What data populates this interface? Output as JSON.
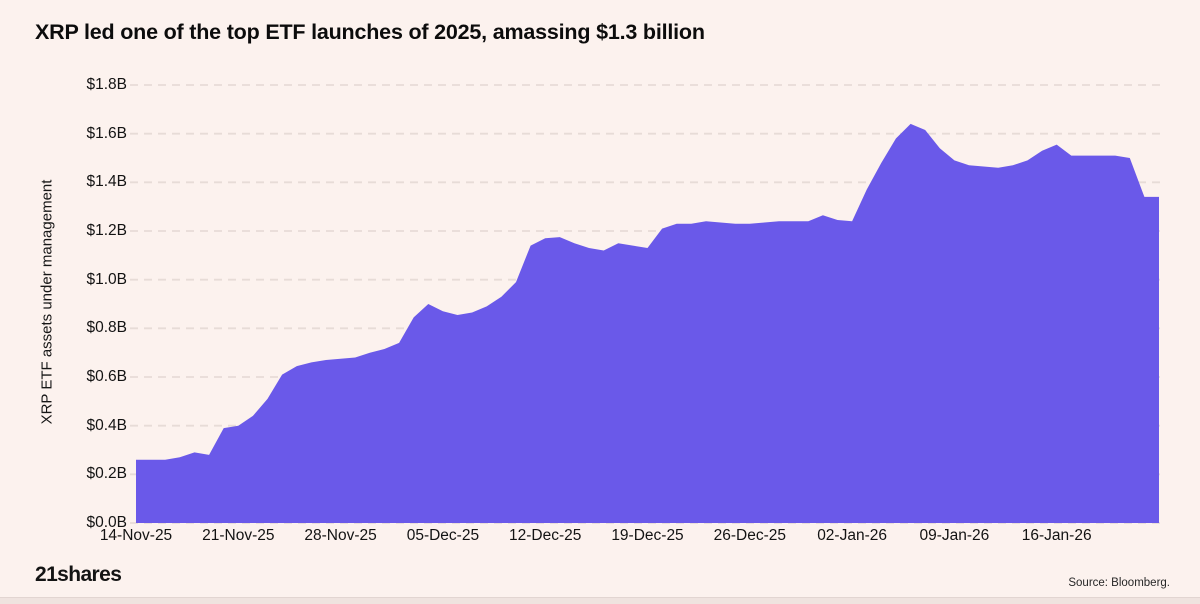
{
  "header": {
    "title": "XRP led one of the top ETF launches of 2025, amassing $1.3 billion"
  },
  "chart_data": {
    "type": "area",
    "title": "XRP led one of the top ETF launches of 2025, amassing $1.3 billion",
    "xlabel": "",
    "ylabel": "XRP ETF assets under management",
    "ylim": [
      0,
      1.8
    ],
    "grid": "horizontal-dashed",
    "legend_position": "none",
    "y_tick_labels": [
      "$0.0B",
      "$0.2B",
      "$0.4B",
      "$0.6B",
      "$0.8B",
      "$1.0B",
      "$1.2B",
      "$1.4B",
      "$1.6B",
      "$1.8B"
    ],
    "x_tick_labels": [
      "14-Nov-25",
      "21-Nov-25",
      "28-Nov-25",
      "05-Dec-25",
      "12-Dec-25",
      "19-Dec-25",
      "26-Dec-25",
      "02-Jan-26",
      "09-Jan-26",
      "16-Jan-26"
    ],
    "x_tick_day_index": [
      0,
      7,
      14,
      21,
      28,
      35,
      42,
      49,
      56,
      63
    ],
    "series": [
      {
        "name": "XRP ETF assets under management ($B)",
        "x": [
          "14-Nov-25",
          "15-Nov-25",
          "16-Nov-25",
          "17-Nov-25",
          "18-Nov-25",
          "19-Nov-25",
          "20-Nov-25",
          "21-Nov-25",
          "22-Nov-25",
          "23-Nov-25",
          "24-Nov-25",
          "25-Nov-25",
          "26-Nov-25",
          "27-Nov-25",
          "28-Nov-25",
          "29-Nov-25",
          "30-Nov-25",
          "01-Dec-25",
          "02-Dec-25",
          "03-Dec-25",
          "04-Dec-25",
          "05-Dec-25",
          "06-Dec-25",
          "07-Dec-25",
          "08-Dec-25",
          "09-Dec-25",
          "10-Dec-25",
          "11-Dec-25",
          "12-Dec-25",
          "13-Dec-25",
          "14-Dec-25",
          "15-Dec-25",
          "16-Dec-25",
          "17-Dec-25",
          "18-Dec-25",
          "19-Dec-25",
          "20-Dec-25",
          "21-Dec-25",
          "22-Dec-25",
          "23-Dec-25",
          "24-Dec-25",
          "25-Dec-25",
          "26-Dec-25",
          "27-Dec-25",
          "28-Dec-25",
          "29-Dec-25",
          "30-Dec-25",
          "31-Dec-25",
          "01-Jan-26",
          "02-Jan-26",
          "03-Jan-26",
          "04-Jan-26",
          "05-Jan-26",
          "06-Jan-26",
          "07-Jan-26",
          "08-Jan-26",
          "09-Jan-26",
          "10-Jan-26",
          "11-Jan-26",
          "12-Jan-26",
          "13-Jan-26",
          "14-Jan-26",
          "15-Jan-26",
          "16-Jan-26",
          "17-Jan-26",
          "18-Jan-26",
          "19-Jan-26",
          "20-Jan-26",
          "21-Jan-26",
          "22-Jan-26",
          "23-Jan-26"
        ],
        "values": [
          0.26,
          0.26,
          0.26,
          0.27,
          0.29,
          0.28,
          0.39,
          0.4,
          0.44,
          0.51,
          0.61,
          0.645,
          0.66,
          0.67,
          0.675,
          0.68,
          0.7,
          0.715,
          0.74,
          0.845,
          0.9,
          0.87,
          0.855,
          0.865,
          0.89,
          0.93,
          0.99,
          1.14,
          1.17,
          1.175,
          1.15,
          1.13,
          1.12,
          1.15,
          1.14,
          1.13,
          1.21,
          1.23,
          1.23,
          1.24,
          1.235,
          1.23,
          1.23,
          1.235,
          1.24,
          1.24,
          1.24,
          1.265,
          1.245,
          1.24,
          1.37,
          1.48,
          1.58,
          1.64,
          1.615,
          1.54,
          1.49,
          1.47,
          1.465,
          1.46,
          1.47,
          1.49,
          1.53,
          1.555,
          1.51,
          1.51,
          1.51,
          1.51,
          1.5,
          1.34,
          1.34
        ]
      }
    ],
    "colors": {
      "area": "#6A59E9",
      "background": "#FCF2EE",
      "gridline": "#E7DCD7",
      "text": "#131313"
    }
  },
  "footer": {
    "logo_text": "21shares",
    "source_text": "Source: Bloomberg."
  }
}
